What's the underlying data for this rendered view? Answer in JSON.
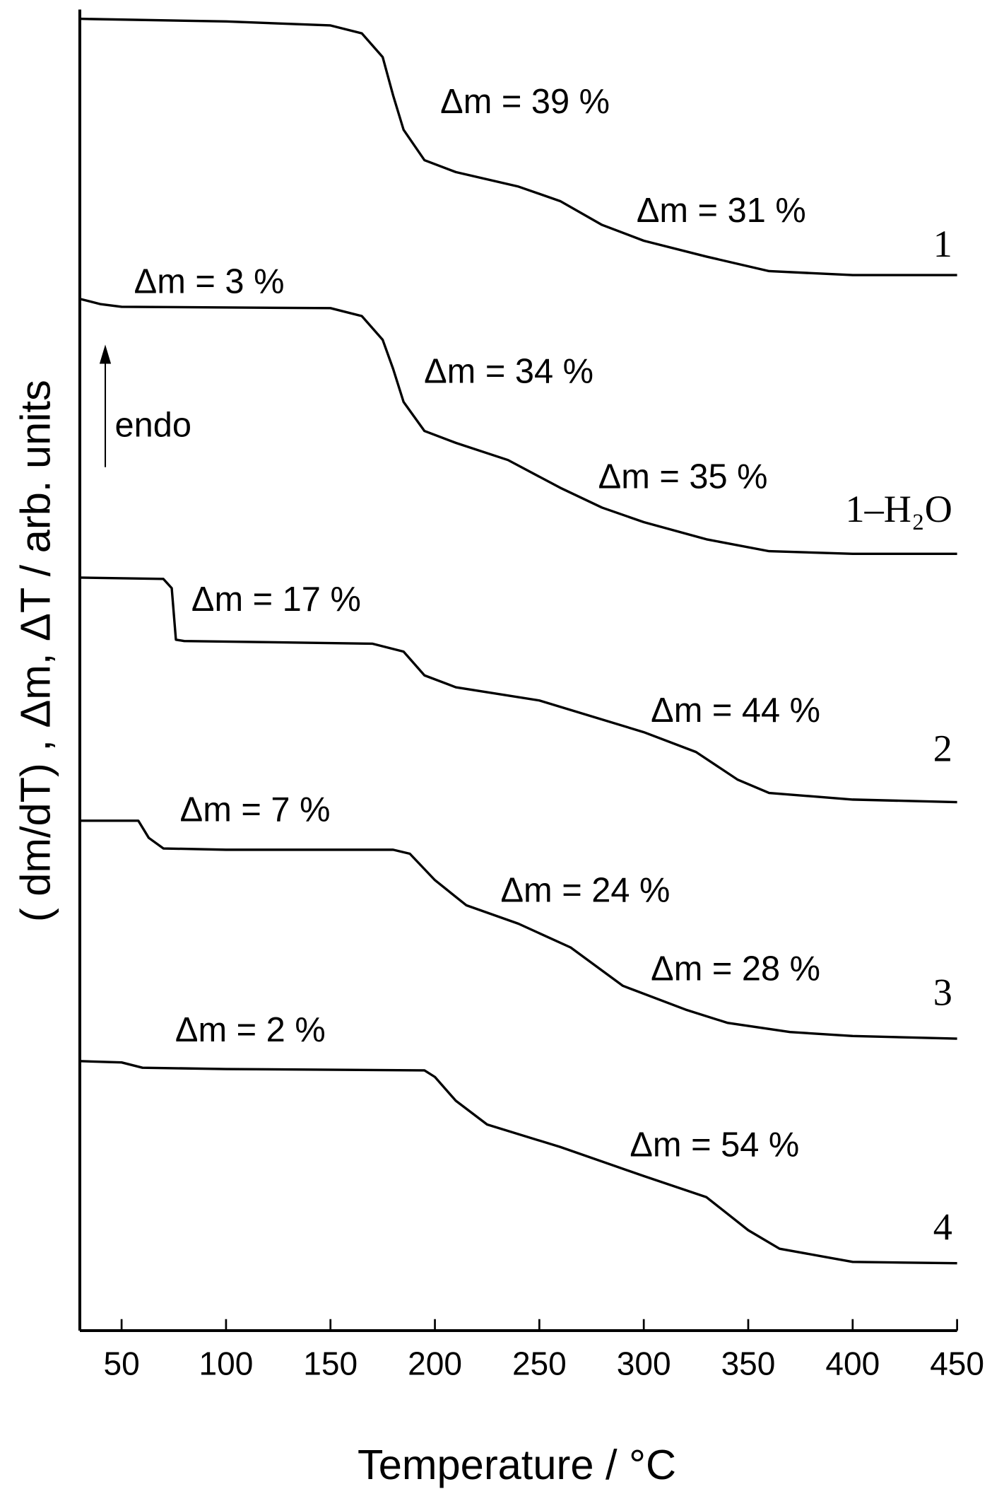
{
  "chart_data": {
    "type": "line",
    "x_label": "Temperature / °C",
    "y_label": "( dm/dT)  , Δm, ΔT / arb. units",
    "xlim": [
      30,
      450
    ],
    "xticks": [
      50,
      100,
      150,
      200,
      250,
      300,
      350,
      400,
      450
    ],
    "ylim": [
      0,
      100
    ],
    "color": "#000000",
    "series": [
      {
        "name": "1",
        "x": [
          30,
          100,
          150,
          165,
          175,
          180,
          185,
          195,
          210,
          240,
          260,
          280,
          300,
          330,
          360,
          400,
          450
        ],
        "values": [
          99.3,
          99.1,
          98.8,
          98.2,
          96.4,
          93.5,
          90.9,
          88.6,
          87.7,
          86.6,
          85.5,
          83.7,
          82.5,
          81.3,
          80.2,
          79.9,
          79.9
        ]
      },
      {
        "name": "1–H₂O",
        "x": [
          30,
          40,
          50,
          150,
          165,
          175,
          180,
          185,
          195,
          210,
          235,
          260,
          280,
          300,
          330,
          360,
          400,
          450
        ],
        "values": [
          78.1,
          77.7,
          77.5,
          77.4,
          76.8,
          75.0,
          72.8,
          70.3,
          68.1,
          67.2,
          65.9,
          63.8,
          62.3,
          61.2,
          59.9,
          59.0,
          58.8,
          58.8
        ]
      },
      {
        "name": "2",
        "x": [
          30,
          70,
          74,
          76,
          80,
          170,
          185,
          195,
          210,
          250,
          300,
          325,
          345,
          360,
          400,
          450
        ],
        "values": [
          57.0,
          56.9,
          56.2,
          52.3,
          52.2,
          52.0,
          51.4,
          49.6,
          48.7,
          47.7,
          45.3,
          43.8,
          41.7,
          40.7,
          40.2,
          40.0
        ]
      },
      {
        "name": "3",
        "x": [
          30,
          58,
          63,
          70,
          100,
          180,
          188,
          200,
          215,
          240,
          265,
          290,
          320,
          340,
          370,
          400,
          450
        ],
        "values": [
          38.6,
          38.6,
          37.3,
          36.5,
          36.4,
          36.4,
          36.1,
          34.1,
          32.2,
          30.8,
          29.0,
          26.1,
          24.3,
          23.3,
          22.6,
          22.3,
          22.1
        ]
      },
      {
        "name": "4",
        "x": [
          30,
          50,
          60,
          100,
          195,
          200,
          210,
          225,
          260,
          300,
          330,
          350,
          365,
          400,
          450
        ],
        "values": [
          20.4,
          20.3,
          19.9,
          19.8,
          19.7,
          19.2,
          17.4,
          15.6,
          13.9,
          11.7,
          10.1,
          7.6,
          6.2,
          5.2,
          5.1
        ]
      }
    ],
    "annotations": [
      "Δm = 39 %",
      "Δm = 31 %",
      "Δm = 3 %",
      "Δm = 34 %",
      "Δm = 35 %",
      "Δm = 17 %",
      "Δm = 44 %",
      "Δm = 7 %",
      "Δm = 24 %",
      "Δm = 28 %",
      "Δm = 2 %",
      "Δm = 54 %"
    ],
    "endo_label": "endo"
  }
}
